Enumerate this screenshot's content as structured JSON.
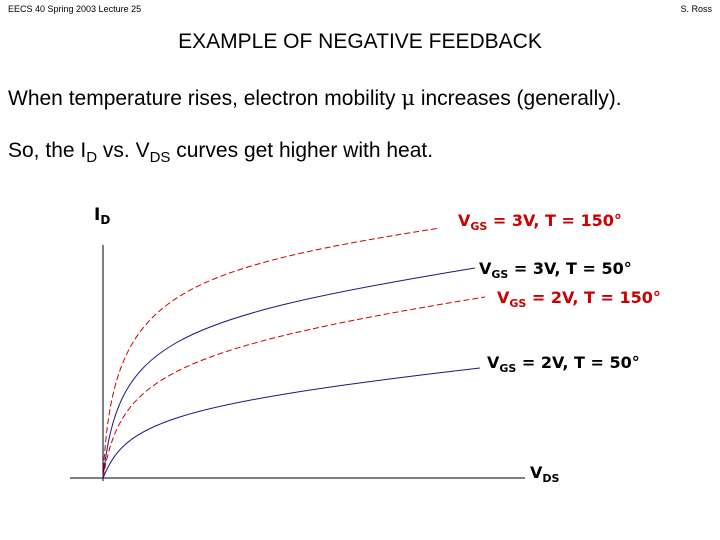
{
  "header": {
    "left": "EECS 40 Spring 2003 Lecture 25",
    "right": "S. Ross"
  },
  "title": "EXAMPLE OF NEGATIVE FEEDBACK",
  "line1": {
    "before": "When temperature rises, electron mobility ",
    "symbol": "μ",
    "after": " increases (generally)."
  },
  "line2": {
    "p1": "So, the I",
    "s1": "D",
    "p2": " vs. V",
    "s2": "DS",
    "p3": " curves get higher with heat."
  },
  "diagram": {
    "y_axis": {
      "main": "I",
      "sub": "D"
    },
    "x_axis": {
      "main": "V",
      "sub": "DS"
    },
    "curves": [
      {
        "id": "vgs3-t150",
        "label_main": "V",
        "label_sub": "GS",
        "label_rest": " = 3V, T = 150°",
        "color": "#cc0000",
        "dashed": true
      },
      {
        "id": "vgs3-t50",
        "label_main": "V",
        "label_sub": "GS",
        "label_rest": " = 3V, T = 50°",
        "color": "#1a1a7a",
        "dashed": false
      },
      {
        "id": "vgs2-t150",
        "label_main": "V",
        "label_sub": "GS",
        "label_rest": " = 2V, T = 150°",
        "color": "#cc0000",
        "dashed": true
      },
      {
        "id": "vgs2-t50",
        "label_main": "V",
        "label_sub": "GS",
        "label_rest": " = 2V, T = 50°",
        "color": "#1a1a7a",
        "dashed": false
      }
    ],
    "label_colors": {
      "red": "#cc0000",
      "black": "#000000"
    }
  }
}
